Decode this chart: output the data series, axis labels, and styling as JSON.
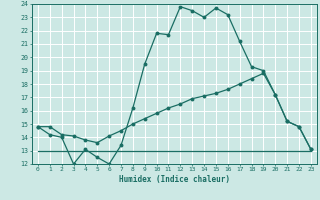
{
  "xlabel": "Humidex (Indice chaleur)",
  "bg_color": "#cce8e4",
  "line_color": "#1a6e64",
  "grid_color": "#ffffff",
  "xlim": [
    -0.5,
    23.5
  ],
  "ylim": [
    12,
    24
  ],
  "xticks": [
    0,
    1,
    2,
    3,
    4,
    5,
    6,
    7,
    8,
    9,
    10,
    11,
    12,
    13,
    14,
    15,
    16,
    17,
    18,
    19,
    20,
    21,
    22,
    23
  ],
  "yticks": [
    12,
    13,
    14,
    15,
    16,
    17,
    18,
    19,
    20,
    21,
    22,
    23,
    24
  ],
  "line1_x": [
    0,
    1,
    2,
    3,
    4,
    5,
    6,
    7,
    8,
    9,
    10,
    11,
    12,
    13,
    14,
    15,
    16,
    17,
    18,
    19,
    20,
    21,
    22,
    23
  ],
  "line1_y": [
    14.8,
    14.2,
    14.0,
    12.0,
    13.1,
    12.5,
    12.0,
    13.4,
    16.2,
    19.5,
    21.8,
    21.7,
    23.8,
    23.5,
    23.0,
    23.7,
    23.2,
    21.2,
    19.3,
    19.0,
    17.2,
    15.2,
    14.8,
    13.1
  ],
  "line2_x": [
    0,
    1,
    2,
    3,
    4,
    5,
    6,
    7,
    8,
    9,
    10,
    11,
    12,
    13,
    14,
    15,
    16,
    17,
    18,
    19,
    20,
    21,
    22,
    23
  ],
  "line2_y": [
    14.8,
    14.8,
    14.2,
    14.1,
    13.8,
    13.6,
    14.1,
    14.5,
    15.0,
    15.4,
    15.8,
    16.2,
    16.5,
    16.9,
    17.1,
    17.3,
    17.6,
    18.0,
    18.4,
    18.8,
    17.2,
    15.2,
    14.8,
    13.1
  ],
  "line3_x": [
    0,
    3,
    20,
    22,
    23
  ],
  "line3_y": [
    13.0,
    13.0,
    13.0,
    13.0,
    13.0
  ]
}
